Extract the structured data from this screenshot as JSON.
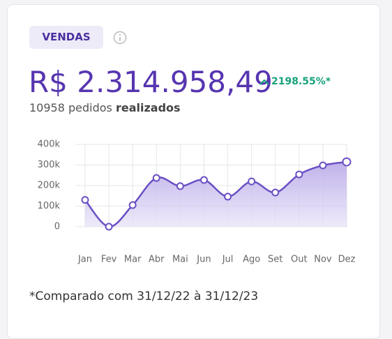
{
  "card": {
    "badge": "VENDAS",
    "amount": "R$ 2.314.958,49",
    "change": "2198.55%*",
    "orders_count": "10958",
    "orders_text": "pedidos",
    "orders_bold": "realizados",
    "footnote": "*Comparado com 31/12/22 à 31/12/23"
  },
  "chart_data": {
    "type": "line",
    "color": "#6a4fc4",
    "area": true,
    "grid": true,
    "categories": [
      "Jan",
      "Fev",
      "Mar",
      "Abr",
      "Mai",
      "Jun",
      "Jul",
      "Ago",
      "Set",
      "Out",
      "Nov",
      "Dez"
    ],
    "values": [
      130000,
      0,
      105000,
      237000,
      197000,
      227000,
      146000,
      220000,
      166000,
      254000,
      298000,
      315000
    ],
    "ylim": [
      0,
      400000
    ],
    "yticks": [
      0,
      {
        "value": 100000,
        "label": "100k"
      },
      {
        "value": 200000,
        "label": "200k"
      },
      {
        "value": 300000,
        "label": "300k"
      },
      {
        "value": 400000,
        "label": "400k"
      }
    ]
  }
}
